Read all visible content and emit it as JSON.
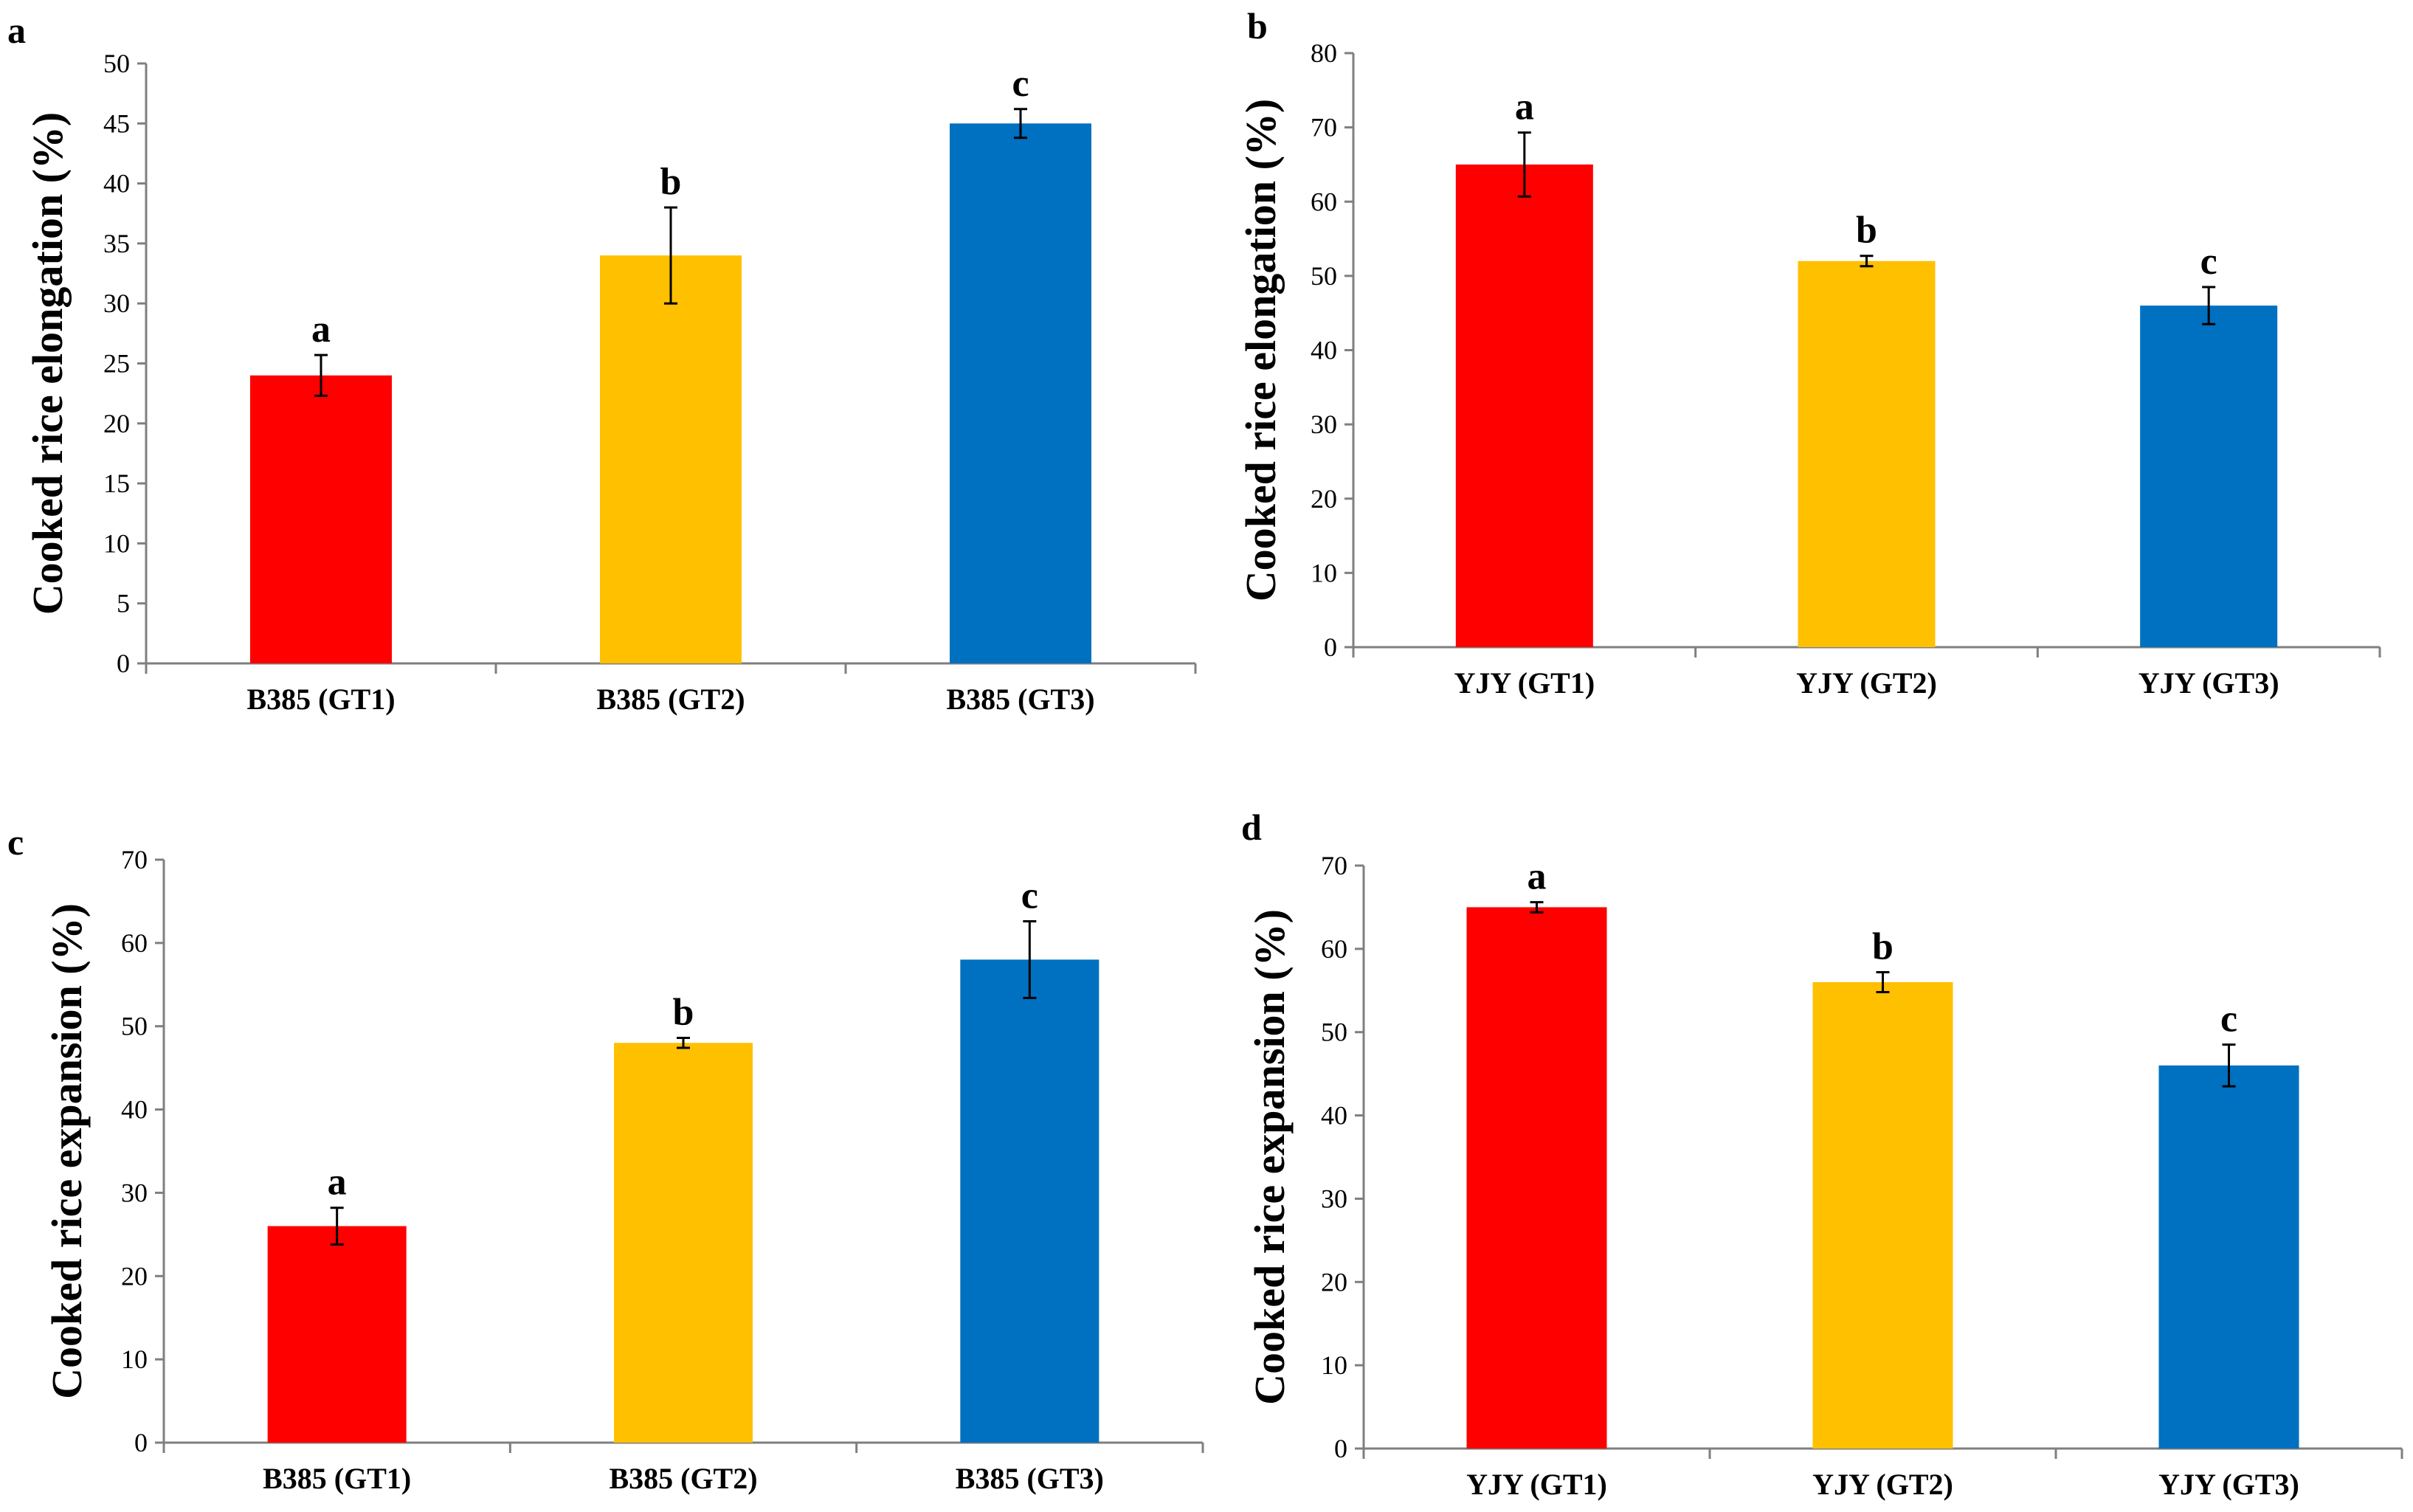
{
  "colors": {
    "GT1": "#ff0000",
    "GT2": "#ffc000",
    "GT3": "#0070c0"
  },
  "chart_data": [
    {
      "panel": "a",
      "type": "bar",
      "ylabel": "Cooked rice elongation (%)",
      "ylim": [
        0,
        50
      ],
      "yticks": [
        0,
        5,
        10,
        15,
        20,
        25,
        30,
        35,
        40,
        45,
        50
      ],
      "categories": [
        "B385 (GT1)",
        "B385 (GT2)",
        "B385 (GT3)"
      ],
      "values": [
        24,
        34,
        45
      ],
      "errors": [
        1.7,
        4.0,
        1.2
      ],
      "labels": [
        "a",
        "b",
        "c"
      ],
      "colors": [
        "#ff0000",
        "#ffc000",
        "#0070c0"
      ],
      "grid": false
    },
    {
      "panel": "b",
      "type": "bar",
      "ylabel": "Cooked rice elongation (%)",
      "ylim": [
        0,
        80
      ],
      "yticks": [
        0,
        10,
        20,
        30,
        40,
        50,
        60,
        70,
        80
      ],
      "categories": [
        "YJY (GT1)",
        "YJY (GT2)",
        "YJY (GT3)"
      ],
      "values": [
        65,
        52,
        46
      ],
      "errors": [
        4.3,
        0.7,
        2.5
      ],
      "labels": [
        "a",
        "b",
        "c"
      ],
      "colors": [
        "#ff0000",
        "#ffc000",
        "#0070c0"
      ],
      "grid": false
    },
    {
      "panel": "c",
      "type": "bar",
      "ylabel": "Cooked rice expansion (%)",
      "ylim": [
        0,
        70
      ],
      "yticks": [
        0,
        10,
        20,
        30,
        40,
        50,
        60,
        70
      ],
      "categories": [
        "B385 (GT1)",
        "B385 (GT2)",
        "B385 (GT3)"
      ],
      "values": [
        26,
        48,
        58
      ],
      "errors": [
        2.2,
        0.6,
        4.6
      ],
      "labels": [
        "a",
        "b",
        "c"
      ],
      "colors": [
        "#ff0000",
        "#ffc000",
        "#0070c0"
      ],
      "grid": false
    },
    {
      "panel": "d",
      "type": "bar",
      "ylabel": "Cooked rice expansion (%)",
      "ylim": [
        0,
        70
      ],
      "yticks": [
        0,
        10,
        20,
        30,
        40,
        50,
        60,
        70
      ],
      "categories": [
        "YJY (GT1)",
        "YJY (GT2)",
        "YJY (GT3)"
      ],
      "values": [
        65,
        56,
        46
      ],
      "errors": [
        0.6,
        1.2,
        2.5
      ],
      "labels": [
        "a",
        "b",
        "c"
      ],
      "colors": [
        "#ff0000",
        "#ffc000",
        "#0070c0"
      ],
      "grid": false
    }
  ]
}
